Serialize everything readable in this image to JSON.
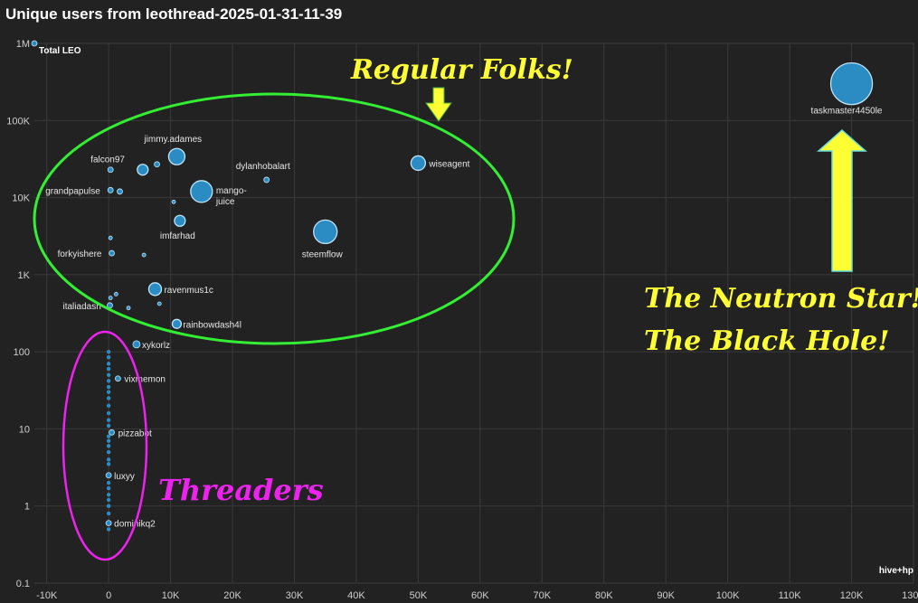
{
  "title": "Unique users from leothread-2025-01-31-11-39",
  "chart_data": {
    "type": "scatter",
    "title": "Unique users from leothread-2025-01-31-11-39",
    "xlabel": "hive+hp",
    "ylabel": "Total LEO",
    "xlim": [
      -12000,
      130000
    ],
    "ylim": [
      0.1,
      1000000
    ],
    "yscale": "log",
    "grid": true,
    "x_ticks": [
      "-10K",
      "0",
      "10K",
      "20K",
      "30K",
      "40K",
      "50K",
      "60K",
      "70K",
      "80K",
      "90K",
      "100K",
      "110K",
      "120K",
      "130K"
    ],
    "y_ticks": [
      "0.1",
      "1",
      "10",
      "100",
      "1K",
      "10K",
      "100K",
      "1M"
    ],
    "point_color": "#2b8cc4",
    "points": [
      {
        "x": -12000,
        "y": 1000000,
        "size": 3,
        "label": ""
      },
      {
        "x": 120000,
        "y": 300000,
        "size": 23,
        "label": "taskmaster4450le"
      },
      {
        "x": 50000,
        "y": 28000,
        "size": 8,
        "label": "wiseagent"
      },
      {
        "x": 35000,
        "y": 3600,
        "size": 13,
        "label": "steemflow"
      },
      {
        "x": 25500,
        "y": 17000,
        "size": 3,
        "label": "dylanhobalart"
      },
      {
        "x": 15000,
        "y": 12000,
        "size": 12,
        "label": "mango-juice"
      },
      {
        "x": 11000,
        "y": 34000,
        "size": 9,
        "label": "jimmy.adames"
      },
      {
        "x": 11500,
        "y": 5000,
        "size": 6,
        "label": "imfarhad"
      },
      {
        "x": 5500,
        "y": 23000,
        "size": 6,
        "label": ""
      },
      {
        "x": 7800,
        "y": 27000,
        "size": 3,
        "label": ""
      },
      {
        "x": 300,
        "y": 23000,
        "size": 3,
        "label": "falcon97"
      },
      {
        "x": 300,
        "y": 12500,
        "size": 3,
        "label": "grandpapulse"
      },
      {
        "x": 1800,
        "y": 12000,
        "size": 3,
        "label": ""
      },
      {
        "x": 10500,
        "y": 8800,
        "size": 2,
        "label": ""
      },
      {
        "x": 500,
        "y": 1900,
        "size": 3,
        "label": "forkyishere"
      },
      {
        "x": 300,
        "y": 3000,
        "size": 2,
        "label": ""
      },
      {
        "x": 5700,
        "y": 1800,
        "size": 2,
        "label": ""
      },
      {
        "x": 7500,
        "y": 650,
        "size": 7,
        "label": "ravenmus1c"
      },
      {
        "x": 1200,
        "y": 560,
        "size": 2,
        "label": ""
      },
      {
        "x": 300,
        "y": 500,
        "size": 2,
        "label": ""
      },
      {
        "x": 200,
        "y": 400,
        "size": 3,
        "label": "italiadash"
      },
      {
        "x": 3200,
        "y": 370,
        "size": 2,
        "label": ""
      },
      {
        "x": 8200,
        "y": 420,
        "size": 2,
        "label": ""
      },
      {
        "x": 11000,
        "y": 230,
        "size": 5,
        "label": "rainbowdash4l"
      },
      {
        "x": 4500,
        "y": 125,
        "size": 4,
        "label": "xykorlz"
      },
      {
        "x": 1500,
        "y": 45,
        "size": 3,
        "label": "vixmemon"
      },
      {
        "x": 500,
        "y": 9,
        "size": 3,
        "label": "pizzabot"
      },
      {
        "x": 0,
        "y": 2.5,
        "size": 3,
        "label": "luxyy"
      },
      {
        "x": 0,
        "y": 0.6,
        "size": 3,
        "label": "dominikq2"
      }
    ],
    "threader_values": [
      100,
      85,
      70,
      60,
      50,
      42,
      35,
      30,
      25,
      20,
      16,
      13,
      11,
      8,
      7,
      6,
      5,
      4,
      3.5,
      2,
      1.7,
      1.4,
      1.2,
      1,
      0.8,
      0.5
    ]
  },
  "annotations": {
    "regular": "Regular Folks!",
    "neutron_line1": "The Neutron Star!",
    "neutron_line2": "The Black Hole!",
    "threaders": "Threaders"
  },
  "annotation_colors": {
    "yellow": "#ffff33",
    "green": "#33ee33",
    "magenta": "#ee22ee"
  }
}
